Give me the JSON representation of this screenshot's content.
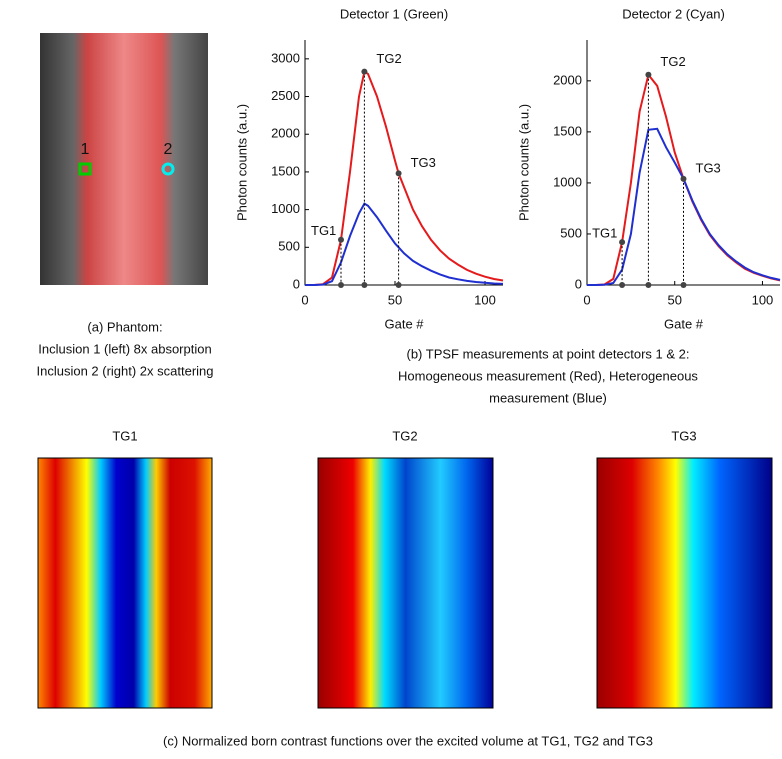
{
  "panel_a": {
    "marker_1": "1",
    "marker_2": "2",
    "caption": [
      "(a) Phantom:",
      "Inclusion 1 (left) 8x absorption",
      "Inclusion 2 (right) 2x scattering"
    ]
  },
  "caption_b": [
    "(b) TPSF measurements at point detectors 1 & 2:",
    "Homogeneous measurement (Red), Heterogeneous",
    "measurement (Blue)"
  ],
  "heatmap_titles": [
    "TG1",
    "TG2",
    "TG3"
  ],
  "caption_c": "(c) Normalized born contrast functions over the excited volume at TG1, TG2 and TG3",
  "chart_data": [
    {
      "type": "line",
      "title": "Detector 1 (Green)",
      "xlabel": "Gate #",
      "ylabel": "Photon counts (a.u.)",
      "x": [
        0,
        5,
        10,
        15,
        20,
        25,
        30,
        33,
        35,
        40,
        45,
        50,
        52,
        55,
        60,
        65,
        70,
        75,
        80,
        85,
        90,
        95,
        100,
        105,
        110
      ],
      "series": [
        {
          "color": "#e41a1c",
          "values": [
            0,
            0,
            10,
            100,
            600,
            1500,
            2500,
            2830,
            2800,
            2500,
            2100,
            1650,
            1480,
            1300,
            1000,
            780,
            600,
            460,
            350,
            270,
            200,
            150,
            110,
            80,
            60
          ]
        },
        {
          "color": "#1f2fd0",
          "values": [
            0,
            0,
            5,
            50,
            300,
            650,
            950,
            1080,
            1050,
            900,
            720,
            550,
            500,
            420,
            320,
            250,
            190,
            140,
            100,
            75,
            55,
            40,
            30,
            20,
            15
          ]
        }
      ],
      "annotations": [
        {
          "label": "TG1",
          "x": 20,
          "y": 600
        },
        {
          "label": "TG2",
          "x": 33,
          "y": 2830
        },
        {
          "label": "TG3",
          "x": 52,
          "y": 1480
        }
      ],
      "xlim": [
        0,
        110
      ],
      "xticks": [
        0,
        50,
        100
      ],
      "ylim": [
        0,
        3250
      ],
      "yticks": [
        0,
        500,
        1000,
        1500,
        2000,
        2500,
        3000
      ]
    },
    {
      "type": "line",
      "title": "Detector 2 (Cyan)",
      "xlabel": "Gate #",
      "ylabel": "Photon counts (a.u.)",
      "x": [
        0,
        5,
        10,
        15,
        20,
        25,
        30,
        35,
        40,
        45,
        50,
        55,
        60,
        65,
        70,
        75,
        80,
        85,
        90,
        95,
        100,
        105,
        110
      ],
      "series": [
        {
          "color": "#e41a1c",
          "values": [
            0,
            0,
            5,
            60,
            420,
            1000,
            1700,
            2060,
            1950,
            1650,
            1300,
            1040,
            820,
            640,
            490,
            380,
            290,
            220,
            160,
            120,
            90,
            65,
            45
          ]
        },
        {
          "color": "#1f2fd0",
          "values": [
            0,
            0,
            2,
            20,
            150,
            500,
            1100,
            1520,
            1530,
            1350,
            1200,
            1040,
            830,
            650,
            500,
            390,
            300,
            230,
            170,
            125,
            95,
            70,
            50
          ]
        }
      ],
      "annotations": [
        {
          "label": "TG1",
          "x": 20,
          "y": 420
        },
        {
          "label": "TG2",
          "x": 35,
          "y": 2060
        },
        {
          "label": "TG3",
          "x": 55,
          "y": 1040
        }
      ],
      "xlim": [
        0,
        110
      ],
      "xticks": [
        0,
        50,
        100
      ],
      "ylim": [
        0,
        2400
      ],
      "yticks": [
        0,
        500,
        1000,
        1500,
        2000
      ]
    }
  ]
}
